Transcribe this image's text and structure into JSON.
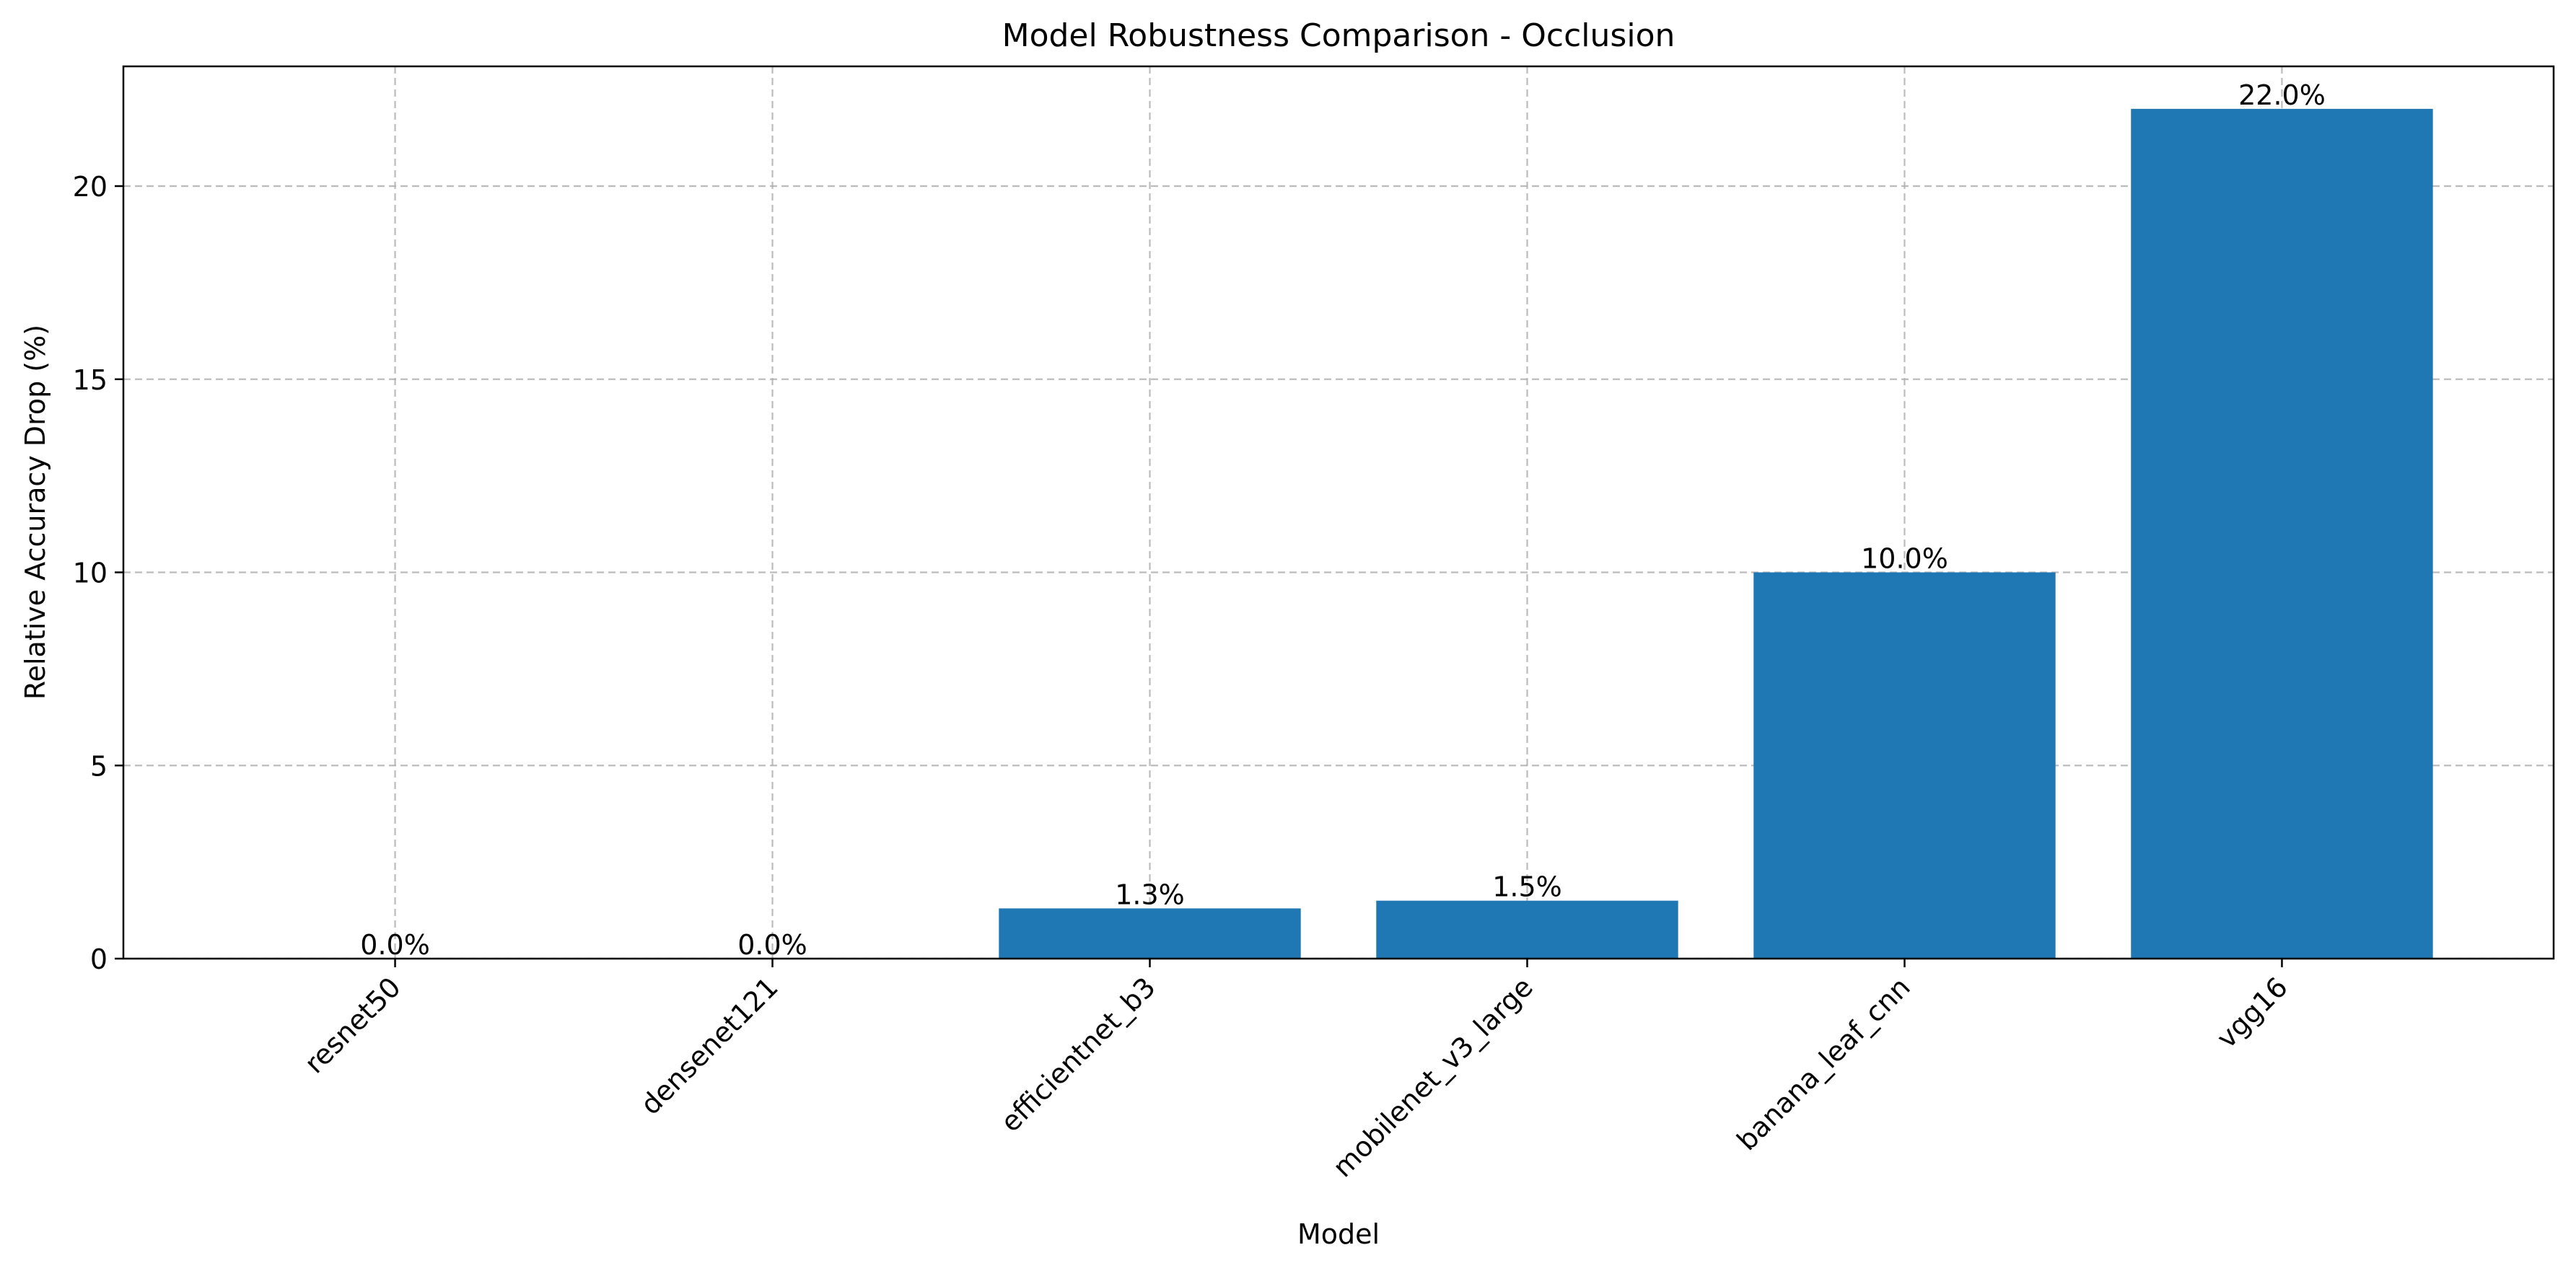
{
  "chart_data": {
    "type": "bar",
    "title": "Model Robustness Comparison - Occlusion",
    "xlabel": "Model",
    "ylabel": "Relative Accuracy Drop (%)",
    "categories": [
      "resnet50",
      "densenet121",
      "efficientnet_b3",
      "mobilenet_v3_large",
      "banana_leaf_cnn",
      "vgg16"
    ],
    "values": [
      0.0,
      0.0,
      1.3,
      1.5,
      10.0,
      22.0
    ],
    "data_labels": [
      "0.0%",
      "0.0%",
      "1.3%",
      "1.5%",
      "10.0%",
      "22.0%"
    ],
    "ylim": [
      0,
      23.1
    ],
    "yticks": [
      0,
      5,
      10,
      15,
      20
    ],
    "grid": true,
    "bar_color": "#1f77b4"
  }
}
